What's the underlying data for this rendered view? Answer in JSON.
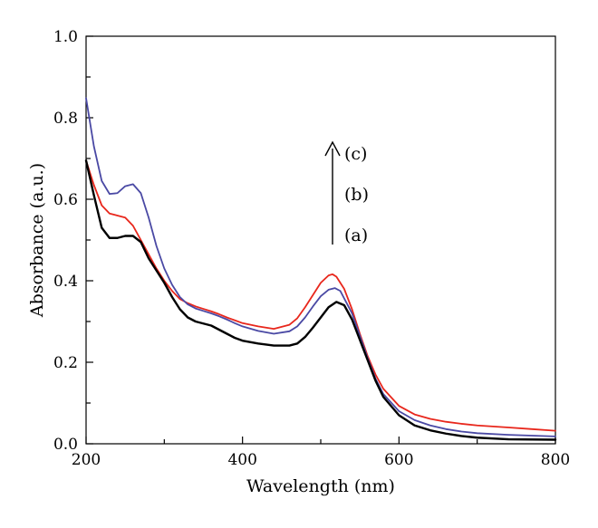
{
  "chart_data": {
    "type": "line",
    "title": "",
    "xlabel": "Wavelength (nm)",
    "ylabel": "Absorbance (a.u.)",
    "xlim": [
      200,
      800
    ],
    "ylim": [
      0.0,
      1.0
    ],
    "xticks": [
      200,
      400,
      600,
      800
    ],
    "xtick_labels": [
      "200",
      "400",
      "600",
      "800"
    ],
    "yticks": [
      0.0,
      0.2,
      0.4,
      0.6,
      0.8,
      1.0
    ],
    "ytick_labels": [
      "0.0",
      "0.2",
      "0.4",
      "0.6",
      "0.8",
      "1.0"
    ],
    "grid": false,
    "legend": "none",
    "series": [
      {
        "name": "(a)",
        "color": "#000000",
        "points": [
          [
            200,
            0.695
          ],
          [
            210,
            0.61
          ],
          [
            220,
            0.53
          ],
          [
            230,
            0.505
          ],
          [
            240,
            0.505
          ],
          [
            250,
            0.51
          ],
          [
            260,
            0.51
          ],
          [
            270,
            0.495
          ],
          [
            280,
            0.455
          ],
          [
            290,
            0.425
          ],
          [
            300,
            0.395
          ],
          [
            310,
            0.36
          ],
          [
            320,
            0.33
          ],
          [
            330,
            0.31
          ],
          [
            340,
            0.3
          ],
          [
            350,
            0.295
          ],
          [
            360,
            0.29
          ],
          [
            370,
            0.28
          ],
          [
            380,
            0.27
          ],
          [
            390,
            0.26
          ],
          [
            400,
            0.253
          ],
          [
            420,
            0.246
          ],
          [
            440,
            0.241
          ],
          [
            460,
            0.241
          ],
          [
            470,
            0.246
          ],
          [
            480,
            0.262
          ],
          [
            490,
            0.285
          ],
          [
            500,
            0.31
          ],
          [
            510,
            0.335
          ],
          [
            520,
            0.348
          ],
          [
            530,
            0.34
          ],
          [
            540,
            0.305
          ],
          [
            550,
            0.255
          ],
          [
            560,
            0.205
          ],
          [
            570,
            0.155
          ],
          [
            580,
            0.115
          ],
          [
            600,
            0.07
          ],
          [
            620,
            0.045
          ],
          [
            640,
            0.033
          ],
          [
            660,
            0.025
          ],
          [
            680,
            0.019
          ],
          [
            700,
            0.015
          ],
          [
            740,
            0.011
          ],
          [
            800,
            0.01
          ]
        ]
      },
      {
        "name": "(b)",
        "color": "#e8271c",
        "points": [
          [
            200,
            0.695
          ],
          [
            210,
            0.635
          ],
          [
            220,
            0.585
          ],
          [
            230,
            0.565
          ],
          [
            240,
            0.56
          ],
          [
            250,
            0.555
          ],
          [
            260,
            0.535
          ],
          [
            270,
            0.5
          ],
          [
            280,
            0.465
          ],
          [
            290,
            0.43
          ],
          [
            300,
            0.4
          ],
          [
            310,
            0.375
          ],
          [
            320,
            0.355
          ],
          [
            330,
            0.345
          ],
          [
            340,
            0.337
          ],
          [
            350,
            0.331
          ],
          [
            360,
            0.325
          ],
          [
            370,
            0.318
          ],
          [
            380,
            0.31
          ],
          [
            390,
            0.303
          ],
          [
            400,
            0.296
          ],
          [
            420,
            0.288
          ],
          [
            440,
            0.282
          ],
          [
            460,
            0.292
          ],
          [
            470,
            0.308
          ],
          [
            480,
            0.335
          ],
          [
            490,
            0.365
          ],
          [
            500,
            0.395
          ],
          [
            510,
            0.413
          ],
          [
            515,
            0.416
          ],
          [
            520,
            0.41
          ],
          [
            530,
            0.38
          ],
          [
            540,
            0.33
          ],
          [
            550,
            0.27
          ],
          [
            560,
            0.215
          ],
          [
            570,
            0.17
          ],
          [
            580,
            0.135
          ],
          [
            600,
            0.093
          ],
          [
            620,
            0.072
          ],
          [
            640,
            0.061
          ],
          [
            660,
            0.054
          ],
          [
            680,
            0.049
          ],
          [
            700,
            0.045
          ],
          [
            740,
            0.04
          ],
          [
            770,
            0.036
          ],
          [
            800,
            0.032
          ]
        ]
      },
      {
        "name": "(c)",
        "color": "#4a49a4",
        "points": [
          [
            200,
            0.848
          ],
          [
            210,
            0.73
          ],
          [
            220,
            0.645
          ],
          [
            230,
            0.613
          ],
          [
            240,
            0.615
          ],
          [
            250,
            0.632
          ],
          [
            260,
            0.637
          ],
          [
            270,
            0.615
          ],
          [
            280,
            0.555
          ],
          [
            290,
            0.485
          ],
          [
            300,
            0.43
          ],
          [
            310,
            0.39
          ],
          [
            320,
            0.36
          ],
          [
            330,
            0.342
          ],
          [
            340,
            0.332
          ],
          [
            350,
            0.326
          ],
          [
            360,
            0.32
          ],
          [
            370,
            0.313
          ],
          [
            380,
            0.305
          ],
          [
            390,
            0.296
          ],
          [
            400,
            0.288
          ],
          [
            420,
            0.277
          ],
          [
            440,
            0.27
          ],
          [
            460,
            0.276
          ],
          [
            470,
            0.288
          ],
          [
            480,
            0.31
          ],
          [
            490,
            0.337
          ],
          [
            500,
            0.362
          ],
          [
            510,
            0.378
          ],
          [
            518,
            0.382
          ],
          [
            525,
            0.375
          ],
          [
            540,
            0.32
          ],
          [
            550,
            0.265
          ],
          [
            560,
            0.21
          ],
          [
            570,
            0.16
          ],
          [
            580,
            0.122
          ],
          [
            600,
            0.08
          ],
          [
            620,
            0.058
          ],
          [
            640,
            0.045
          ],
          [
            660,
            0.036
          ],
          [
            680,
            0.03
          ],
          [
            700,
            0.026
          ],
          [
            740,
            0.022
          ],
          [
            800,
            0.018
          ]
        ]
      }
    ],
    "annotations": [
      {
        "text": "(c)",
        "color": "#4a49a4"
      },
      {
        "text": "(b)",
        "color": "#e8271c"
      },
      {
        "text": "(a)",
        "color": "#000000"
      }
    ]
  }
}
